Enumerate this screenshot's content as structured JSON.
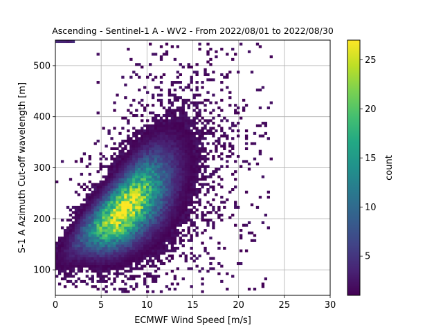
{
  "chart_data": {
    "type": "heatmap",
    "title": "Ascending - Sentinel-1 A - WV2 - From 2022/08/01 to 2022/08/30",
    "xlabel": "ECMWF Wind Speed [m/s]",
    "ylabel": "S-1 A Azimuth Cut-off wavelength [m]",
    "xlim": [
      0,
      30
    ],
    "ylim": [
      50,
      550
    ],
    "x_ticks": [
      0,
      5,
      10,
      15,
      20,
      25,
      30
    ],
    "x_tick_labels": [
      "0",
      "5",
      "10",
      "15",
      "20",
      "25",
      "30"
    ],
    "y_ticks": [
      100,
      200,
      300,
      400,
      500
    ],
    "y_tick_labels": [
      "100",
      "200",
      "300",
      "400",
      "500"
    ],
    "grid": true,
    "colormap": "viridis",
    "colorbar": {
      "label": "count",
      "range": [
        1,
        27
      ],
      "ticks": [
        5,
        10,
        15,
        20,
        25
      ],
      "tick_labels": [
        "5",
        "10",
        "15",
        "20",
        "25"
      ]
    },
    "bin_size": {
      "x": 0.3,
      "y": 5
    },
    "density_model": {
      "ridge": [
        [
          0.5,
          125
        ],
        [
          3,
          165
        ],
        [
          5,
          185
        ],
        [
          7.5,
          215
        ],
        [
          9.5,
          245
        ],
        [
          12,
          275
        ],
        [
          15,
          310
        ],
        [
          18,
          345
        ]
      ],
      "peak_count": 27,
      "peak_location": [
        7.5,
        220
      ]
    },
    "extent": {
      "x_max": 23.5,
      "y_min": 55,
      "y_max": 545
    }
  }
}
